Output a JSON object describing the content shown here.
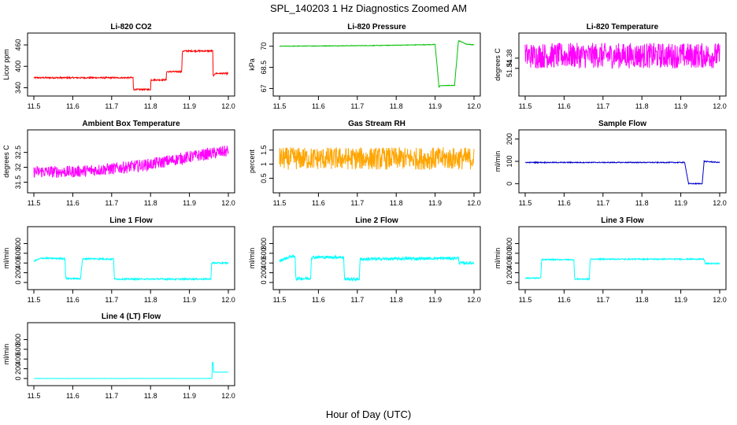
{
  "figure": {
    "title": "SPL_140203  1 Hz Diagnostics Zoomed AM",
    "xlabel": "Hour of Day (UTC)"
  },
  "chart_data": [
    {
      "id": "co2",
      "type": "line",
      "title": "Li-820 CO2",
      "ylabel": "Licor ppm",
      "color": "#ff0000",
      "xlim": [
        11.5,
        12.0
      ],
      "ylim": [
        330,
        480
      ],
      "xticks": [
        11.5,
        11.6,
        11.7,
        11.8,
        11.9,
        12.0
      ],
      "yticks": [
        340,
        400,
        460
      ],
      "x": [
        11.5,
        11.6,
        11.7,
        11.755,
        11.756,
        11.8,
        11.801,
        11.84,
        11.841,
        11.88,
        11.882,
        11.905,
        11.96,
        11.961,
        11.965,
        12.0
      ],
      "y": [
        368,
        368,
        368,
        368,
        335,
        335,
        362,
        362,
        385,
        385,
        443,
        443,
        443,
        368,
        380,
        380
      ],
      "noise": 2
    },
    {
      "id": "pressure",
      "type": "line",
      "title": "Li-820 Pressure",
      "ylabel": "kPa",
      "color": "#00c000",
      "xlim": [
        11.5,
        12.0
      ],
      "ylim": [
        66.8,
        70.6
      ],
      "xticks": [
        11.5,
        11.6,
        11.7,
        11.8,
        11.9,
        12.0
      ],
      "yticks": [
        67.0,
        68.5,
        70.0
      ],
      "x": [
        11.5,
        11.75,
        11.9,
        11.91,
        11.913,
        11.95,
        11.96,
        11.965,
        11.98,
        12.0
      ],
      "y": [
        70.0,
        70.05,
        70.12,
        67.1,
        67.2,
        67.22,
        70.4,
        70.35,
        70.15,
        70.1
      ],
      "noise": 0.02
    },
    {
      "id": "licor-temp",
      "type": "line",
      "title": "Li-820 Temperature",
      "ylabel": "degrees C",
      "color": "#ff00ff",
      "xlim": [
        11.5,
        12.0
      ],
      "ylim": [
        51.25,
        51.46
      ],
      "xticks": [
        11.5,
        11.6,
        11.7,
        11.8,
        11.9,
        12.0
      ],
      "yticks": [
        51.34,
        51.38
      ],
      "x": [
        11.5,
        12.0
      ],
      "y": [
        51.39,
        51.39
      ],
      "noise": 0.05
    },
    {
      "id": "box-temp",
      "type": "line",
      "title": "Ambient Box Temperature",
      "ylabel": "degrees C",
      "color": "#ff00ff",
      "xlim": [
        11.5,
        12.0
      ],
      "ylim": [
        31.3,
        33.1
      ],
      "xticks": [
        11.5,
        11.6,
        11.7,
        11.8,
        11.9,
        12.0
      ],
      "yticks": [
        31.5,
        32.0,
        32.5
      ],
      "x": [
        11.5,
        11.6,
        11.7,
        11.8,
        11.9,
        12.0
      ],
      "y": [
        31.85,
        31.85,
        31.95,
        32.1,
        32.35,
        32.55
      ],
      "noise": 0.2
    },
    {
      "id": "rh",
      "type": "line",
      "title": "Gas Stream RH",
      "ylabel": "percent",
      "color": "#ffa500",
      "xlim": [
        11.5,
        12.0
      ],
      "ylim": [
        0.15,
        2.05
      ],
      "xticks": [
        11.5,
        11.6,
        11.7,
        11.8,
        11.9,
        12.0
      ],
      "yticks": [
        0.5,
        1.0,
        1.5
      ],
      "x": [
        11.5,
        12.0
      ],
      "y": [
        1.2,
        1.2
      ],
      "noise": 0.4
    },
    {
      "id": "sample-flow",
      "type": "line",
      "title": "Sample Flow",
      "ylabel": "ml/min",
      "color": "#0000cc",
      "xlim": [
        11.5,
        12.0
      ],
      "ylim": [
        -20,
        220
      ],
      "xticks": [
        11.5,
        11.6,
        11.7,
        11.8,
        11.9,
        12.0
      ],
      "yticks": [
        0,
        100,
        200
      ],
      "x": [
        11.5,
        11.7,
        11.91,
        11.92,
        11.955,
        11.96,
        12.0
      ],
      "y": [
        95,
        95,
        95,
        0,
        0,
        100,
        95
      ],
      "noise": 2
    },
    {
      "id": "line1-flow",
      "type": "line",
      "title": "Line 1 Flow",
      "ylabel": "ml/min",
      "color": "#00ffff",
      "xlim": [
        11.5,
        12.0
      ],
      "ylim": [
        -50,
        1050
      ],
      "xticks": [
        11.5,
        11.6,
        11.7,
        11.8,
        11.9,
        12.0
      ],
      "yticks": [
        0,
        200,
        400,
        600,
        800
      ],
      "x": [
        11.5,
        11.52,
        11.58,
        11.582,
        11.62,
        11.625,
        11.64,
        11.705,
        11.707,
        11.955,
        11.957,
        12.0
      ],
      "y": [
        440,
        500,
        490,
        80,
        80,
        480,
        490,
        480,
        70,
        70,
        400,
        400
      ],
      "noise": 15
    },
    {
      "id": "line2-flow",
      "type": "line",
      "title": "Line 2 Flow",
      "ylabel": "ml/min",
      "color": "#00ffff",
      "xlim": [
        11.5,
        12.0
      ],
      "ylim": [
        -50,
        1050
      ],
      "xticks": [
        11.5,
        11.6,
        11.7,
        11.8,
        11.9,
        12.0
      ],
      "yticks": [
        0,
        200,
        400,
        600,
        800
      ],
      "x": [
        11.5,
        11.53,
        11.54,
        11.542,
        11.58,
        11.582,
        11.665,
        11.667,
        11.705,
        11.707,
        11.96,
        11.962,
        12.0
      ],
      "y": [
        440,
        540,
        520,
        80,
        80,
        520,
        520,
        70,
        70,
        480,
        500,
        400,
        400
      ],
      "noise": 30
    },
    {
      "id": "line3-flow",
      "type": "line",
      "title": "Line 3 Flow",
      "ylabel": "ml/min",
      "color": "#00ffff",
      "xlim": [
        11.5,
        12.0
      ],
      "ylim": [
        -50,
        1050
      ],
      "xticks": [
        11.5,
        11.6,
        11.7,
        11.8,
        11.9,
        12.0
      ],
      "yticks": [
        0,
        200,
        400,
        600,
        800
      ],
      "x": [
        11.5,
        11.54,
        11.542,
        11.625,
        11.627,
        11.665,
        11.667,
        11.96,
        11.962,
        12.0
      ],
      "y": [
        90,
        90,
        470,
        470,
        70,
        70,
        480,
        480,
        390,
        390
      ],
      "noise": 12
    },
    {
      "id": "line4-flow",
      "type": "line",
      "title": "Line 4 (LT) Flow",
      "ylabel": "ml/min",
      "color": "#00ffff",
      "xlim": [
        11.5,
        12.0
      ],
      "ylim": [
        -50,
        1050
      ],
      "xticks": [
        11.5,
        11.6,
        11.7,
        11.8,
        11.9,
        12.0
      ],
      "yticks": [
        0,
        200,
        400,
        600,
        800
      ],
      "x": [
        11.5,
        11.958,
        11.959,
        11.961,
        11.962,
        12.0
      ],
      "y": [
        0,
        0,
        330,
        330,
        130,
        130
      ],
      "noise": 2
    }
  ]
}
